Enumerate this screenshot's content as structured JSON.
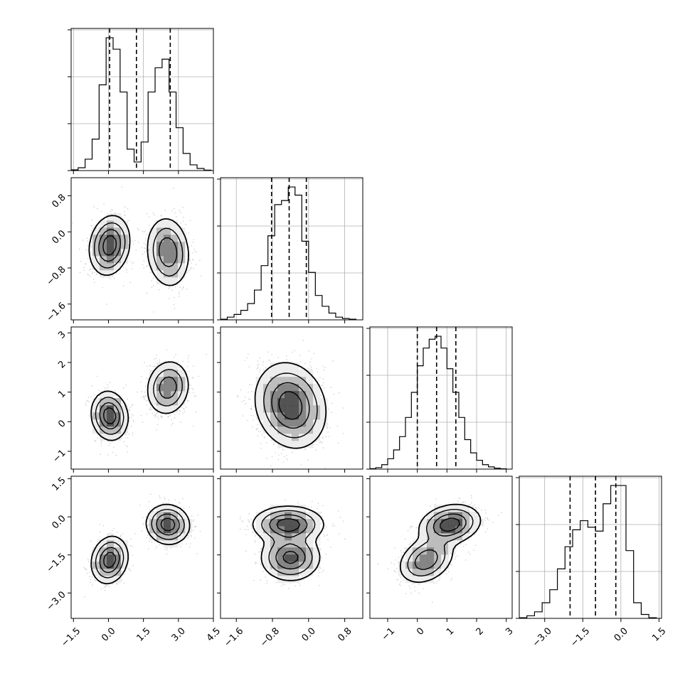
{
  "chart_data": {
    "type": "corner",
    "variables": [
      {
        "ticks": [
          -1.5,
          0.0,
          1.5,
          3.0,
          4.5
        ],
        "tick_labels": [
          "−1.5",
          "0.0",
          "1.5",
          "3.0",
          "4.5"
        ],
        "range": [
          -1.6,
          4.5
        ],
        "quantiles": [
          0.05,
          1.2,
          2.65
        ]
      },
      {
        "ticks": [
          -1.6,
          -0.8,
          0.0,
          0.8
        ],
        "tick_labels": [
          "−1.6",
          "−0.8",
          "0.0",
          "0.8"
        ],
        "range": [
          -1.95,
          1.2
        ],
        "quantiles": [
          -0.82,
          -0.43,
          -0.05
        ]
      },
      {
        "ticks": [
          -1,
          0,
          1,
          2,
          3
        ],
        "tick_labels": [
          "−1",
          "0",
          "1",
          "2",
          "3"
        ],
        "range": [
          -1.6,
          3.2
        ],
        "quantiles": [
          0.0,
          0.65,
          1.3
        ]
      },
      {
        "ticks": [
          -3.0,
          -1.5,
          0.0,
          1.5
        ],
        "tick_labels": [
          "−3.0",
          "−1.5",
          "0.0",
          "1.5"
        ],
        "range": [
          -4.0,
          1.6
        ],
        "quantiles": [
          -2.0,
          -1.0,
          -0.2
        ]
      }
    ],
    "marginal_histograms": [
      {
        "bin_edges": [
          -1.6,
          -1.3,
          -1.0,
          -0.7,
          -0.4,
          -0.1,
          0.2,
          0.5,
          0.8,
          1.1,
          1.4,
          1.7,
          2.0,
          2.3,
          2.6,
          2.9,
          3.2,
          3.5,
          3.8,
          4.1,
          4.4
        ],
        "counts": [
          0.5,
          2,
          8,
          22,
          60,
          93,
          85,
          55,
          15,
          6,
          20,
          55,
          72,
          78,
          55,
          30,
          12,
          4,
          1.5,
          0.3
        ]
      },
      {
        "bin_edges": [
          -1.95,
          -1.8,
          -1.65,
          -1.5,
          -1.35,
          -1.2,
          -1.05,
          -0.9,
          -0.75,
          -0.6,
          -0.45,
          -0.3,
          -0.15,
          0.0,
          0.15,
          0.3,
          0.45,
          0.6,
          0.75,
          0.9,
          1.05
        ],
        "counts": [
          0.5,
          2,
          4,
          7,
          12,
          22,
          40,
          62,
          85,
          88,
          98,
          92,
          58,
          35,
          18,
          10,
          5,
          2,
          1,
          0.5
        ]
      },
      {
        "bin_edges": [
          -1.6,
          -1.4,
          -1.2,
          -1.0,
          -0.8,
          -0.6,
          -0.4,
          -0.2,
          0.0,
          0.2,
          0.4,
          0.6,
          0.8,
          1.0,
          1.2,
          1.4,
          1.6,
          1.8,
          2.0,
          2.2,
          2.4,
          2.6,
          2.8,
          3.0
        ],
        "counts": [
          0.3,
          1,
          3,
          7,
          13,
          22,
          35,
          52,
          70,
          82,
          88,
          90,
          82,
          68,
          52,
          35,
          20,
          11,
          6,
          3,
          1.5,
          0.6,
          0.2
        ]
      },
      {
        "bin_edges": [
          -4.0,
          -3.7,
          -3.4,
          -3.1,
          -2.8,
          -2.5,
          -2.2,
          -1.9,
          -1.6,
          -1.3,
          -1.0,
          -0.7,
          -0.4,
          -0.1,
          0.2,
          0.5,
          0.8,
          1.1,
          1.4
        ],
        "counts": [
          0.5,
          2,
          5,
          12,
          22,
          38,
          55,
          68,
          75,
          70,
          67,
          88,
          102,
          102,
          52,
          12,
          3,
          0.5
        ]
      }
    ],
    "joint_distributions": [
      {
        "row": 1,
        "col": 0,
        "modes": [
          {
            "center": [
              0.05,
              -0.3
            ],
            "sigma": [
              0.42,
              0.32
            ],
            "rho": 0.15,
            "weight": 0.5
          },
          {
            "center": [
              2.55,
              -0.45
            ],
            "sigma": [
              0.45,
              0.38
            ],
            "rho": -0.1,
            "weight": 0.5
          }
        ]
      },
      {
        "row": 2,
        "col": 0,
        "modes": [
          {
            "center": [
              0.05,
              0.2
            ],
            "sigma": [
              0.38,
              0.4
            ],
            "rho": -0.1,
            "weight": 0.5
          },
          {
            "center": [
              2.55,
              1.15
            ],
            "sigma": [
              0.45,
              0.45
            ],
            "rho": 0.1,
            "weight": 0.5
          }
        ]
      },
      {
        "row": 2,
        "col": 1,
        "modes": [
          {
            "center": [
              -0.4,
              0.55
            ],
            "sigma": [
              0.38,
              0.7
            ],
            "rho": -0.15,
            "weight": 1.0
          }
        ]
      },
      {
        "row": 3,
        "col": 0,
        "modes": [
          {
            "center": [
              0.05,
              -1.7
            ],
            "sigma": [
              0.38,
              0.45
            ],
            "rho": 0.15,
            "weight": 0.5
          },
          {
            "center": [
              2.55,
              -0.3
            ],
            "sigma": [
              0.45,
              0.38
            ],
            "rho": -0.05,
            "weight": 0.5
          }
        ]
      },
      {
        "row": 3,
        "col": 1,
        "modes": [
          {
            "center": [
              -0.45,
              -0.3
            ],
            "sigma": [
              0.38,
              0.35
            ],
            "rho": 0.0,
            "weight": 0.5
          },
          {
            "center": [
              -0.4,
              -1.6
            ],
            "sigma": [
              0.32,
              0.45
            ],
            "rho": 0.0,
            "weight": 0.5
          }
        ]
      },
      {
        "row": 3,
        "col": 2,
        "modes": [
          {
            "center": [
              0.3,
              -1.7
            ],
            "sigma": [
              0.45,
              0.45
            ],
            "rho": 0.3,
            "weight": 0.45
          },
          {
            "center": [
              1.1,
              -0.3
            ],
            "sigma": [
              0.5,
              0.38
            ],
            "rho": 0.2,
            "weight": 0.55
          }
        ]
      }
    ],
    "grid": true,
    "title": "",
    "xlabel": "",
    "ylabel": ""
  }
}
